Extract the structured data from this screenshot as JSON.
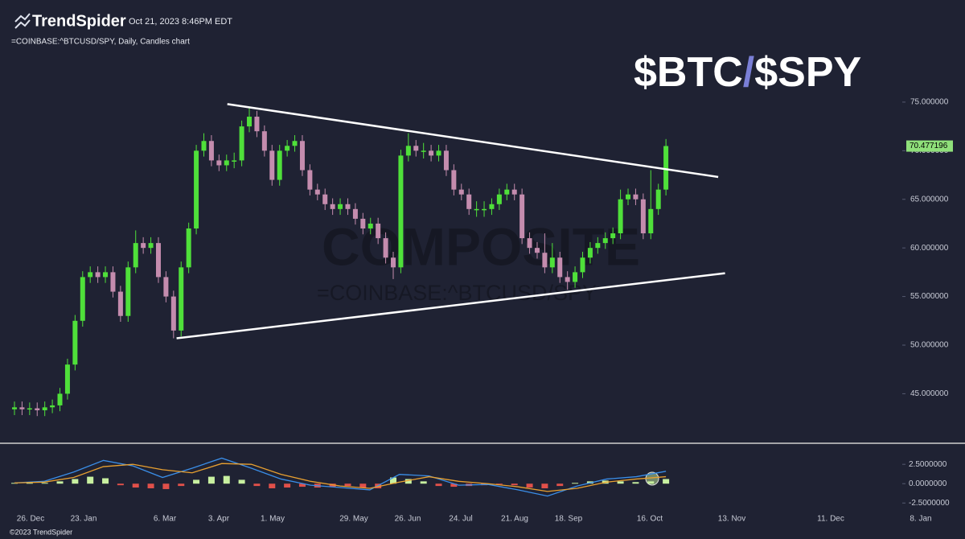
{
  "header": {
    "brand": "TrendSpider",
    "timestamp": "Oct 21, 2023 8:46PM EDT",
    "symbol_line": "=COINBASE:^BTCUSD/SPY, Daily, Candles chart",
    "title_parts": [
      "$BTC",
      "/",
      "$SPY"
    ],
    "watermark": [
      "COMPOSITE",
      "=COINBASE:^BTCUSD/SPY"
    ]
  },
  "chart_data": {
    "type": "candlestick",
    "open": [
      43.4,
      43.6,
      43.4,
      43.5,
      43.3,
      43.6,
      43.8,
      45,
      48,
      52.5,
      57,
      57.5,
      57,
      57.5,
      55.5,
      53,
      58,
      60.5,
      60,
      60.5,
      57,
      55,
      51.5,
      58,
      62,
      70,
      71,
      69,
      68.5,
      69,
      69,
      72.5,
      73.5,
      72,
      70,
      67,
      70,
      70.5,
      71,
      68,
      66,
      65.5,
      64.5,
      64,
      64.5,
      64,
      63,
      62,
      62.5,
      61,
      59,
      58,
      69.5,
      70.5,
      70,
      70,
      69.5,
      70,
      68,
      66,
      65.5,
      64,
      64,
      64,
      64.5,
      65.5,
      66,
      65.5,
      61,
      60,
      59.5,
      58,
      59,
      57,
      56.5,
      57.5,
      59,
      60,
      60.5,
      61,
      61.5,
      65,
      65.5,
      65,
      61.5,
      64,
      66
    ],
    "high": [
      44.2,
      44.2,
      44.1,
      44.1,
      44.2,
      44.4,
      45.6,
      48.6,
      53.1,
      57.6,
      58.1,
      58.1,
      58.1,
      58.1,
      56.1,
      58.6,
      61.8,
      61.1,
      61.1,
      61.1,
      57.6,
      55.6,
      58.6,
      62.6,
      70.6,
      71.8,
      71.6,
      69.6,
      69.6,
      69.8,
      73.1,
      74.4,
      74.1,
      72.6,
      70.6,
      70.6,
      71.1,
      71.6,
      71.6,
      68.6,
      66.6,
      66.1,
      65.1,
      65.1,
      65.1,
      64.6,
      63.6,
      63.1,
      63.1,
      61.6,
      59.6,
      70.1,
      71.8,
      71.1,
      70.8,
      70.6,
      70.6,
      70.6,
      68.6,
      66.6,
      66.1,
      64.8,
      64.8,
      65.1,
      66.1,
      66.6,
      66.6,
      66.1,
      61.6,
      60.6,
      61.5,
      60.5,
      59.6,
      57.6,
      58.1,
      59.6,
      60.6,
      61.1,
      61.6,
      62.1,
      66.0,
      66.1,
      66.1,
      65.6,
      68.0,
      66.6,
      71.2
    ],
    "low": [
      42.8,
      42.8,
      42.8,
      42.7,
      42.7,
      43.0,
      43.2,
      44.4,
      47.4,
      51.9,
      56.4,
      56.4,
      56.4,
      54.9,
      52.4,
      52.4,
      57.4,
      59.4,
      59.4,
      56.4,
      54.4,
      50.7,
      50.9,
      57.4,
      61.4,
      69.4,
      68.4,
      67.9,
      67.9,
      68.2,
      68.4,
      71.9,
      71.4,
      69.4,
      66.4,
      66.4,
      69.4,
      69.9,
      67.4,
      65.4,
      64.9,
      63.9,
      63.4,
      63.4,
      63.4,
      62.4,
      61.4,
      61.4,
      60.4,
      58.4,
      56.8,
      57.4,
      68.9,
      69.4,
      69.2,
      68.9,
      68.9,
      67.4,
      65.4,
      64.9,
      63.4,
      63.2,
      63.2,
      63.4,
      63.9,
      64.9,
      64.9,
      60.4,
      59.4,
      58.9,
      57.4,
      57.4,
      56.4,
      55.7,
      55.9,
      56.9,
      58.4,
      59.4,
      59.9,
      60.4,
      60.9,
      64.4,
      64.4,
      60.9,
      60.9,
      63.4,
      65.4
    ],
    "close": [
      43.6,
      43.4,
      43.5,
      43.3,
      43.6,
      43.8,
      45,
      48,
      52.5,
      57,
      57.5,
      57,
      57.5,
      55.5,
      53,
      58,
      60.5,
      60,
      60.5,
      57,
      55,
      51.5,
      58,
      62,
      70,
      71,
      69,
      68.5,
      69,
      69,
      72.5,
      73.5,
      72,
      70,
      67,
      70,
      70.5,
      71,
      68,
      66,
      65.5,
      64.5,
      64,
      64.5,
      64,
      63,
      62,
      62.5,
      61,
      59,
      58,
      69.5,
      70.5,
      70,
      70,
      69.5,
      70,
      68,
      66,
      65.5,
      64,
      64,
      64,
      64.5,
      65.5,
      66,
      65.5,
      61,
      60,
      59.5,
      58,
      59,
      57,
      56.5,
      57.5,
      59,
      60,
      60.5,
      61,
      61.5,
      65,
      65.5,
      65,
      61.5,
      64,
      66,
      70.48
    ],
    "up_color": "#4fe03a",
    "down_color": "#c48cae",
    "last_price": 70.477196,
    "last_price_color": "#8fe07a",
    "ylim": [
      40.4,
      76.4
    ],
    "yticks": [
      {
        "value": 75,
        "label": "75.000000"
      },
      {
        "value": 70,
        "label": "70.000000"
      },
      {
        "value": 65,
        "label": "65.000000"
      },
      {
        "value": 60,
        "label": "60.000000"
      },
      {
        "value": 55,
        "label": "55.000000"
      },
      {
        "value": 50,
        "label": "50.000000"
      },
      {
        "value": 45,
        "label": "45.000000"
      }
    ],
    "trendlines": [
      {
        "x": [
          28.1,
          92.9
        ],
        "y": [
          74.8,
          67.3
        ]
      },
      {
        "x": [
          21.4,
          93.8
        ],
        "y": [
          50.7,
          57.4
        ]
      }
    ],
    "x_labels": [
      "26. Dec",
      "23. Jan",
      "6. Mar",
      "3. Apr",
      "1. May",
      "29. May",
      "26. Jun",
      "24. Jul",
      "21. Aug",
      "18. Sep",
      "16. Oct",
      "13. Nov",
      "11. Dec",
      "8. Jan"
    ],
    "macd": {
      "ylim": [
        -3.2,
        4.7
      ],
      "yticks": [
        {
          "value": 2.5,
          "label": "2.5000000"
        },
        {
          "value": 0,
          "label": "0.0000000"
        },
        {
          "value": -2.5,
          "label": "-2.5000000"
        }
      ],
      "histogram": [
        0.1,
        0.1,
        0.1,
        0.3,
        0.6,
        0.9,
        0.7,
        -0.2,
        -0.5,
        -0.6,
        -0.7,
        -0.3,
        0.5,
        0.9,
        1.0,
        0.5,
        -0.3,
        -0.6,
        -0.5,
        -0.4,
        -0.5,
        -0.4,
        -0.3,
        -0.5,
        -0.6,
        0.8,
        0.6,
        0.3,
        -0.3,
        -0.4,
        -0.3,
        -0.2,
        -0.1,
        -0.2,
        -0.5,
        -0.6,
        -0.3,
        0.1,
        0.3,
        0.4,
        0.3,
        0.2,
        0.3,
        0.6
      ],
      "pos_color": "#c8f0a0",
      "neg_color": "#e0504a",
      "series": [
        {
          "color": "#3a8ee8",
          "values": [
            0.1,
            0.3,
            1.5,
            3.0,
            2.3,
            0.8,
            2.0,
            3.3,
            2.0,
            0.6,
            -0.2,
            -0.5,
            -0.8,
            1.2,
            1.0,
            -0.2,
            -0.1,
            -0.8,
            -1.6,
            -0.3,
            0.6,
            0.9,
            1.6
          ]
        },
        {
          "color": "#e8a030",
          "values": [
            0.1,
            0.2,
            0.8,
            2.2,
            2.5,
            1.8,
            1.4,
            2.6,
            2.5,
            1.2,
            0.3,
            -0.3,
            -0.6,
            0.2,
            0.9,
            0.3,
            0.0,
            -0.4,
            -1.0,
            -0.6,
            0.2,
            0.6,
            0.9
          ]
        }
      ]
    }
  },
  "footer": "©2023 TrendSpider"
}
